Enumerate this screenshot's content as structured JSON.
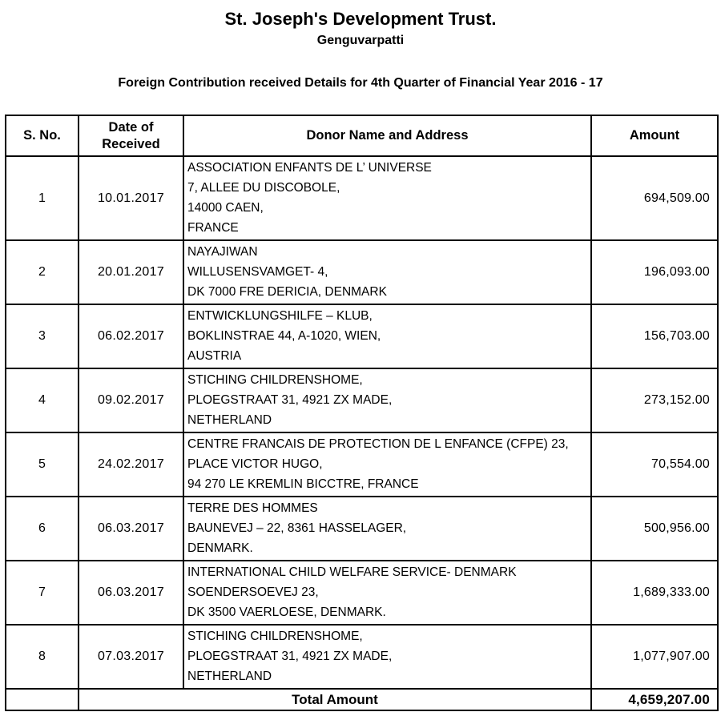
{
  "document": {
    "org_name": "St. Joseph's Development Trust.",
    "org_location": "Genguvarpatti",
    "report_title": "Foreign Contribution received Details for 4th Quarter of Financial Year 2016 - 17"
  },
  "table": {
    "headers": {
      "sno": "S. No.",
      "date": "Date of Received",
      "donor": "Donor Name and Address",
      "amount": "Amount"
    },
    "rows": [
      {
        "sno": "1",
        "date": "10.01.2017",
        "donor_lines": [
          "ASSOCIATION ENFANTS DE L’ UNIVERSE",
          "7, ALLEE DU DISCOBOLE,",
          "14000 CAEN,",
          "FRANCE"
        ],
        "amount": "694,509.00"
      },
      {
        "sno": "2",
        "date": "20.01.2017",
        "donor_lines": [
          "NAYAJIWAN",
          "WILLUSENSVAMGET- 4,",
          "DK 7000 FRE DERICIA, DENMARK"
        ],
        "amount": "196,093.00"
      },
      {
        "sno": "3",
        "date": "06.02.2017",
        "donor_lines": [
          "ENTWICKLUNGSHILFE – KLUB,",
          "BOKLINSTRAE 44, A-1020, WIEN,",
          "AUSTRIA"
        ],
        "amount": "156,703.00"
      },
      {
        "sno": "4",
        "date": "09.02.2017",
        "donor_lines": [
          "STICHING CHILDRENSHOME,",
          "PLOEGSTRAAT 31, 4921 ZX MADE,",
          "NETHERLAND"
        ],
        "amount": "273,152.00"
      },
      {
        "sno": "5",
        "date": "24.02.2017",
        "donor_lines": [
          "CENTRE FRANCAIS DE PROTECTION DE L ENFANCE (CFPE) 23,",
          "PLACE VICTOR HUGO,",
          "94 270 LE KREMLIN BICCTRE, FRANCE"
        ],
        "amount": "70,554.00"
      },
      {
        "sno": "6",
        "date": "06.03.2017",
        "donor_lines": [
          "TERRE DES HOMMES",
          "BAUNEVEJ – 22, 8361 HASSELAGER,",
          "DENMARK."
        ],
        "amount": "500,956.00"
      },
      {
        "sno": "7",
        "date": "06.03.2017",
        "donor_lines": [
          "INTERNATIONAL CHILD WELFARE SERVICE- DENMARK",
          "SOENDERSOEVEJ 23,",
          "DK 3500 VAERLOESE, DENMARK."
        ],
        "amount": "1,689,333.00"
      },
      {
        "sno": "8",
        "date": "07.03.2017",
        "donor_lines": [
          "STICHING CHILDRENSHOME,",
          "PLOEGSTRAAT 31, 4921 ZX MADE,",
          "NETHERLAND"
        ],
        "amount": "1,077,907.00"
      }
    ],
    "total": {
      "label": "Total Amount",
      "amount": "4,659,207.00"
    }
  },
  "colors": {
    "text": "#000000",
    "border": "#000000",
    "background": "#ffffff"
  }
}
